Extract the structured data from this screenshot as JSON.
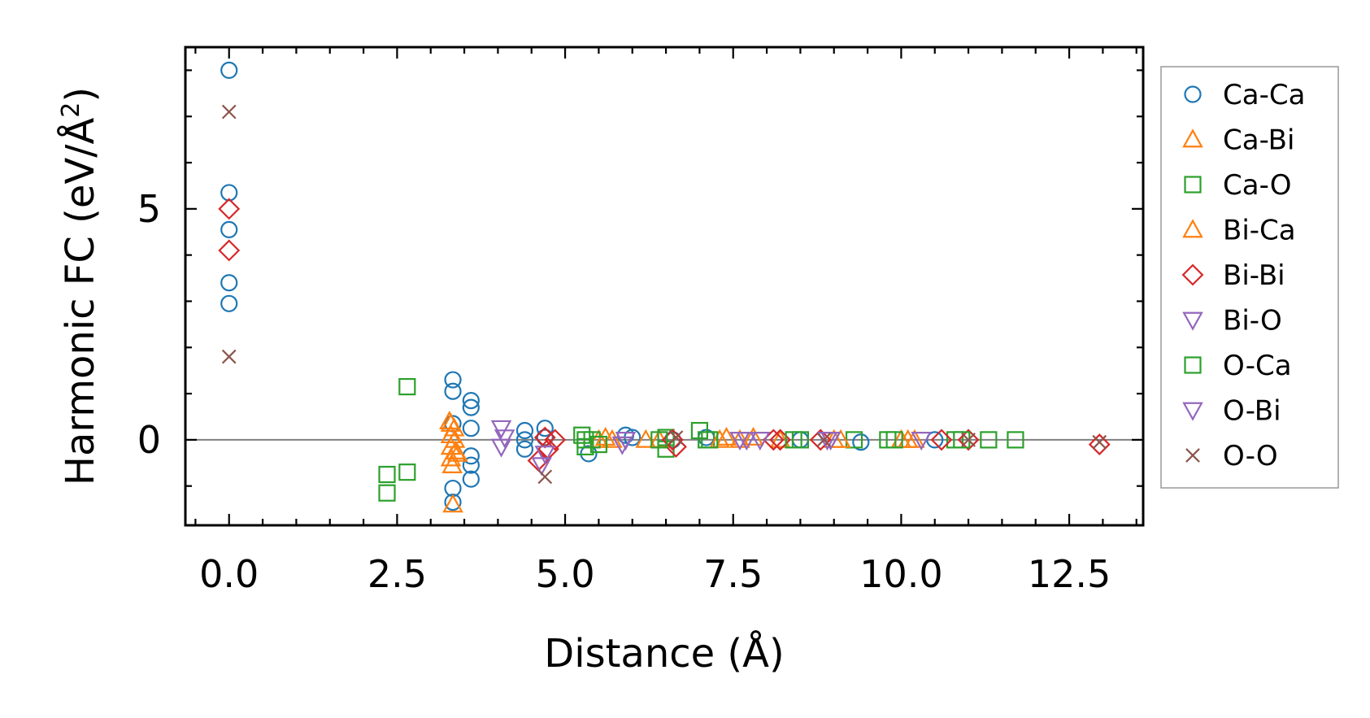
{
  "chart_data": {
    "type": "scatter",
    "xlabel": "Distance (Å)",
    "ylabel_main": "Harmonic FC (eV/Å",
    "ylabel_sup": "2",
    "ylabel_close": ")",
    "xlim": [
      -0.65,
      13.6
    ],
    "ylim": [
      -1.85,
      8.5
    ],
    "x_major_ticks": [
      0.0,
      2.5,
      5.0,
      7.5,
      10.0,
      12.5
    ],
    "x_tick_labels": [
      "0.0",
      "2.5",
      "5.0",
      "7.5",
      "10.0",
      "12.5"
    ],
    "x_minor_step": 0.5,
    "y_major_ticks": [
      0,
      5
    ],
    "y_tick_labels": [
      "0",
      "5"
    ],
    "y_minor_step": 1,
    "zero_line": true,
    "legend_position": "right-outside-top",
    "series": [
      {
        "name": "Ca-Ca",
        "marker": "circle",
        "color": "#1f77b4",
        "points": [
          [
            0,
            8.0
          ],
          [
            0,
            5.35
          ],
          [
            0,
            4.55
          ],
          [
            0,
            3.4
          ],
          [
            0,
            2.95
          ],
          [
            3.33,
            1.3
          ],
          [
            3.33,
            1.05
          ],
          [
            3.33,
            0.35
          ],
          [
            3.33,
            -1.05
          ],
          [
            3.33,
            -1.35
          ],
          [
            3.6,
            0.85
          ],
          [
            3.6,
            0.7
          ],
          [
            3.6,
            0.25
          ],
          [
            3.6,
            -0.35
          ],
          [
            3.6,
            -0.55
          ],
          [
            3.6,
            -0.85
          ],
          [
            4.4,
            0.2
          ],
          [
            4.4,
            0.0
          ],
          [
            4.4,
            -0.2
          ],
          [
            4.7,
            0.25
          ],
          [
            4.7,
            0.05
          ],
          [
            5.35,
            -0.3
          ],
          [
            5.9,
            0.1
          ],
          [
            6.0,
            0.05
          ],
          [
            6.6,
            0.0
          ],
          [
            7.1,
            0.05
          ],
          [
            8.5,
            0.0
          ],
          [
            9.4,
            -0.05
          ],
          [
            10.5,
            0.0
          ]
        ]
      },
      {
        "name": "Ca-Bi",
        "marker": "triangle-up",
        "color": "#ff7f0e",
        "points": [
          [
            3.3,
            0.35
          ],
          [
            3.3,
            0.1
          ],
          [
            3.3,
            -0.15
          ],
          [
            3.3,
            -0.4
          ],
          [
            3.33,
            -1.4
          ],
          [
            3.35,
            0.25
          ],
          [
            3.37,
            -0.25
          ],
          [
            5.5,
            0.0
          ],
          [
            5.7,
            0.0
          ],
          [
            6.4,
            0.0
          ],
          [
            7.4,
            0.05
          ],
          [
            7.6,
            0.0
          ],
          [
            8.2,
            0.0
          ],
          [
            9.0,
            0.0
          ],
          [
            10.0,
            0.0
          ],
          [
            10.1,
            0.0
          ]
        ]
      },
      {
        "name": "Ca-O",
        "marker": "square",
        "color": "#2ca02c",
        "points": [
          [
            2.35,
            -0.75
          ],
          [
            2.35,
            -1.15
          ],
          [
            2.65,
            -0.7
          ],
          [
            2.65,
            1.15
          ],
          [
            5.25,
            0.1
          ],
          [
            5.3,
            -0.15
          ],
          [
            5.4,
            0.0
          ],
          [
            6.5,
            0.05
          ],
          [
            6.5,
            -0.2
          ],
          [
            7.0,
            0.2
          ],
          [
            7.1,
            0.0
          ],
          [
            8.5,
            0.0
          ],
          [
            9.3,
            0.0
          ],
          [
            9.8,
            0.0
          ],
          [
            10.8,
            0.0
          ],
          [
            11.3,
            0.0
          ],
          [
            11.7,
            0.0
          ]
        ]
      },
      {
        "name": "Bi-Ca",
        "marker": "triangle-up",
        "color": "#ff7f0e",
        "points": [
          [
            3.28,
            0.4
          ],
          [
            3.32,
            -0.55
          ],
          [
            3.36,
            0.0
          ],
          [
            3.4,
            -0.3
          ],
          [
            5.6,
            0.05
          ],
          [
            6.2,
            0.0
          ],
          [
            7.3,
            0.0
          ],
          [
            7.8,
            0.05
          ],
          [
            9.1,
            0.0
          ],
          [
            10.2,
            0.0
          ]
        ]
      },
      {
        "name": "Bi-Bi",
        "marker": "diamond",
        "color": "#d62728",
        "points": [
          [
            0,
            5.0
          ],
          [
            0,
            4.1
          ],
          [
            4.6,
            -0.45
          ],
          [
            4.7,
            0.05
          ],
          [
            4.75,
            -0.2
          ],
          [
            4.85,
            0.0
          ],
          [
            6.6,
            0.0
          ],
          [
            6.65,
            -0.15
          ],
          [
            8.1,
            0.0
          ],
          [
            8.2,
            0.0
          ],
          [
            8.8,
            0.0
          ],
          [
            10.6,
            0.0
          ],
          [
            11.0,
            0.0
          ],
          [
            12.95,
            -0.1
          ]
        ]
      },
      {
        "name": "Bi-O",
        "marker": "triangle-down",
        "color": "#9467bd",
        "points": [
          [
            4.05,
            0.25
          ],
          [
            4.05,
            -0.15
          ],
          [
            5.85,
            -0.1
          ],
          [
            7.6,
            0.0
          ],
          [
            7.9,
            0.0
          ],
          [
            8.9,
            0.0
          ],
          [
            10.3,
            0.0
          ]
        ]
      },
      {
        "name": "O-Ca",
        "marker": "square",
        "color": "#2ca02c",
        "points": [
          [
            5.3,
            0.0
          ],
          [
            5.5,
            -0.1
          ],
          [
            6.4,
            0.0
          ],
          [
            7.15,
            0.0
          ],
          [
            8.4,
            0.0
          ],
          [
            9.9,
            0.0
          ],
          [
            10.9,
            0.0
          ]
        ]
      },
      {
        "name": "O-Bi",
        "marker": "triangle-down",
        "color": "#9467bd",
        "points": [
          [
            4.1,
            0.05
          ],
          [
            4.65,
            -0.55
          ],
          [
            4.7,
            -0.3
          ],
          [
            5.9,
            0.0
          ],
          [
            7.7,
            0.0
          ],
          [
            8.95,
            0.0
          ]
        ]
      },
      {
        "name": "O-O",
        "marker": "cross",
        "color": "#8c564b",
        "points": [
          [
            0,
            7.1
          ],
          [
            0,
            1.8
          ],
          [
            4.7,
            -0.8
          ],
          [
            6.65,
            0.05
          ],
          [
            8.85,
            0.0
          ],
          [
            11.0,
            0.0
          ],
          [
            12.95,
            -0.05
          ]
        ]
      }
    ]
  }
}
